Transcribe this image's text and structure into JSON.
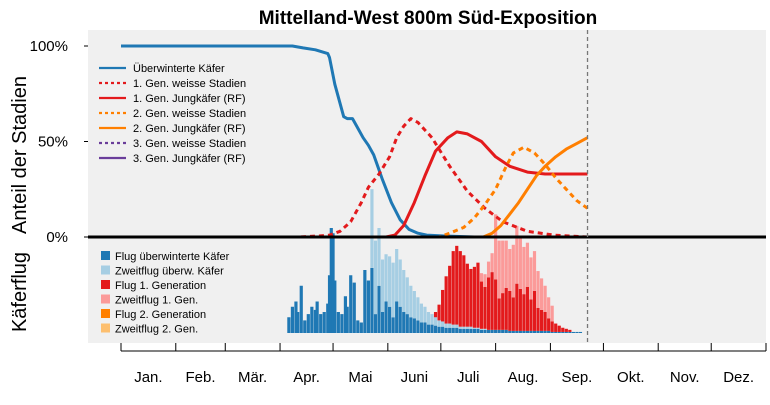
{
  "chart_data": {
    "type": "line",
    "title": "Mittelland-West 800m Süd-Exposition",
    "ylabel_top": "Anteil der Stadien",
    "ylabel_bottom": "Käferflug",
    "yticks": [
      "100%",
      "50%",
      "0%"
    ],
    "ylim_top": [
      0,
      100
    ],
    "xlim": [
      0,
      365
    ],
    "months": [
      "Jan.",
      "Feb.",
      "Mär.",
      "Apr.",
      "Mai",
      "Juni",
      "Juli",
      "Aug.",
      "Sep.",
      "Okt.",
      "Nov.",
      "Dez."
    ],
    "month_starts": [
      0,
      31,
      59,
      90,
      120,
      151,
      181,
      212,
      243,
      273,
      304,
      334,
      365
    ],
    "today_marker_day": 264,
    "colors": {
      "panel_bg": "#f0f0f0",
      "overwintered": "#1f78b4",
      "overwintered_light": "#a6cee3",
      "gen1": "#e31a1c",
      "gen1_light": "#fb9a99",
      "gen2": "#ff7f00",
      "gen2_light": "#fdbf6f",
      "gen3": "#6a3d9a"
    },
    "legend_top": [
      {
        "label": "Überwinterte Käfer",
        "color": "#1f78b4",
        "dash": "solid"
      },
      {
        "label": "1. Gen. weisse Stadien",
        "color": "#e31a1c",
        "dash": "dashed"
      },
      {
        "label": "1. Gen. Jungkäfer (RF)",
        "color": "#e31a1c",
        "dash": "solid"
      },
      {
        "label": "2. Gen. weisse Stadien",
        "color": "#ff7f00",
        "dash": "dashed"
      },
      {
        "label": "2. Gen. Jungkäfer (RF)",
        "color": "#ff7f00",
        "dash": "solid"
      },
      {
        "label": "3. Gen. weisse Stadien",
        "color": "#6a3d9a",
        "dash": "dashed"
      },
      {
        "label": "3. Gen. Jungkäfer (RF)",
        "color": "#6a3d9a",
        "dash": "solid"
      }
    ],
    "legend_bottom": [
      {
        "label": "Flug überwinterte Käfer",
        "color": "#1f78b4"
      },
      {
        "label": "Zweitflug überw. Käfer",
        "color": "#a6cee3"
      },
      {
        "label": "Flug 1. Generation",
        "color": "#e31a1c"
      },
      {
        "label": "Zweitflug 1. Gen.",
        "color": "#fb9a99"
      },
      {
        "label": "Flug 2. Generation",
        "color": "#ff7f00"
      },
      {
        "label": "Zweitflug 2. Gen.",
        "color": "#fdbf6f"
      }
    ],
    "series": [
      {
        "name": "Überwinterte Käfer",
        "x": [
          0,
          90,
          97,
          103,
          110,
          117,
          118,
          121,
          126,
          128,
          131,
          134,
          137,
          140,
          143,
          148,
          153,
          158,
          163,
          168,
          173,
          183,
          200,
          230,
          264
        ],
        "y": [
          100,
          100,
          100,
          99,
          98,
          96,
          94,
          80,
          63,
          62,
          62,
          57,
          52,
          48,
          43,
          30,
          18,
          9,
          4,
          2,
          1,
          0.5,
          0,
          0,
          0
        ]
      },
      {
        "name": "1. Gen. weisse Stadien",
        "x": [
          0,
          100,
          112,
          118,
          124,
          130,
          136,
          140,
          146,
          152,
          156,
          160,
          164,
          168,
          176,
          186,
          196,
          206,
          216,
          230,
          245,
          264
        ],
        "y": [
          0,
          0,
          0.5,
          1,
          3,
          8,
          18,
          26,
          33,
          42,
          52,
          58,
          62,
          60,
          52,
          37,
          24,
          15,
          8,
          3,
          1,
          0
        ]
      },
      {
        "name": "1. Gen. Jungkäfer (RF)",
        "x": [
          0,
          150,
          155,
          160,
          166,
          172,
          178,
          185,
          190,
          196,
          204,
          212,
          220,
          230,
          240,
          250,
          264
        ],
        "y": [
          0,
          0,
          1,
          6,
          18,
          32,
          45,
          52,
          55,
          54,
          50,
          42,
          37,
          34,
          33,
          33,
          33
        ]
      },
      {
        "name": "2. Gen. weisse Stadien",
        "x": [
          0,
          175,
          180,
          186,
          194,
          200,
          206,
          212,
          218,
          222,
          228,
          234,
          240,
          246,
          252,
          258,
          264
        ],
        "y": [
          0,
          0,
          0,
          2,
          5,
          10,
          17,
          25,
          37,
          44,
          47,
          44,
          38,
          31,
          25,
          19,
          15
        ]
      },
      {
        "name": "2. Gen. Jungkäfer (RF)",
        "x": [
          0,
          205,
          210,
          215,
          220,
          225,
          230,
          235,
          240,
          246,
          252,
          258,
          264
        ],
        "y": [
          0,
          0,
          2,
          6,
          12,
          18,
          25,
          32,
          37,
          42,
          46,
          49,
          52
        ]
      },
      {
        "name": "3. Gen. weisse Stadien",
        "x": [
          0,
          264
        ],
        "y": [
          0,
          0
        ]
      },
      {
        "name": "3. Gen. Jungkäfer (RF)",
        "x": [
          0,
          264
        ],
        "y": [
          0,
          0
        ]
      }
    ],
    "flight_bars": [
      {
        "name": "Flug überwinterte Käfer",
        "color": "#1f78b4",
        "days": [
          95,
          97,
          99,
          100,
          102,
          104,
          106,
          108,
          110,
          111,
          113,
          115,
          117,
          118,
          119,
          120,
          121,
          123,
          125,
          127,
          128,
          130,
          132,
          134,
          136,
          138,
          140,
          142,
          144,
          146,
          148,
          150,
          152,
          154,
          156,
          158,
          160,
          162,
          164,
          166,
          168,
          170,
          172,
          174,
          176,
          178,
          180,
          182,
          184,
          186,
          188,
          190,
          192,
          194,
          196,
          198,
          200,
          202,
          204,
          206,
          208,
          210,
          212,
          214,
          216,
          218,
          220,
          222,
          224,
          226,
          228,
          230,
          232,
          234,
          236,
          238,
          240,
          242,
          244,
          246,
          248,
          250,
          252,
          254,
          256,
          258,
          260
        ],
        "values": [
          15,
          25,
          30,
          20,
          45,
          12,
          18,
          25,
          22,
          30,
          18,
          20,
          28,
          55,
          100,
          95,
          50,
          20,
          18,
          35,
          25,
          55,
          48,
          12,
          10,
          60,
          50,
          62,
          18,
          45,
          20,
          30,
          25,
          15,
          30,
          25,
          20,
          18,
          15,
          14,
          12,
          10,
          10,
          8,
          8,
          7,
          6,
          6,
          5,
          5,
          5,
          5,
          4,
          4,
          4,
          4,
          4,
          4,
          3,
          3,
          3,
          3,
          3,
          3,
          3,
          3,
          2,
          2,
          2,
          2,
          2,
          2,
          2,
          2,
          2,
          2,
          2,
          2,
          1,
          1,
          1,
          1,
          1,
          1,
          1,
          1,
          1
        ]
      },
      {
        "name": "Zweitflug überw. Käfer",
        "color": "#a6cee3",
        "days": [
          142,
          144,
          146,
          148,
          150,
          152,
          154,
          156,
          158,
          160,
          162,
          164,
          166,
          168,
          170,
          172,
          174,
          176,
          178,
          180,
          182,
          184,
          186,
          188,
          190,
          192,
          194,
          196,
          198,
          200,
          202,
          204,
          206
        ],
        "values": [
          75,
          70,
          55,
          50,
          45,
          48,
          52,
          50,
          45,
          40,
          35,
          30,
          26,
          22,
          18,
          15,
          12,
          10,
          8,
          6,
          5,
          4,
          4,
          3,
          3,
          2,
          2,
          2,
          2,
          1,
          1,
          1,
          1
        ]
      },
      {
        "name": "Flug 1. Generation",
        "color": "#e31a1c",
        "days": [
          178,
          180,
          182,
          184,
          186,
          188,
          190,
          192,
          194,
          196,
          198,
          200,
          202,
          204,
          206,
          208,
          210,
          212,
          214,
          216,
          218,
          220,
          222,
          224,
          226,
          228,
          230,
          232,
          234,
          236,
          238,
          240,
          242,
          244,
          246,
          248,
          250,
          252,
          254
        ],
        "values": [
          5,
          15,
          30,
          45,
          55,
          70,
          75,
          72,
          68,
          60,
          55,
          58,
          62,
          45,
          40,
          50,
          55,
          48,
          30,
          35,
          40,
          38,
          32,
          45,
          40,
          35,
          42,
          30,
          38,
          22,
          20,
          18,
          12,
          10,
          8,
          6,
          4,
          3,
          2
        ]
      },
      {
        "name": "Zweitflug 1. Gen.",
        "color": "#fb9a99",
        "days": [
          204,
          206,
          208,
          210,
          212,
          214,
          216,
          218,
          220,
          222,
          224,
          226,
          228,
          230,
          232,
          234,
          236,
          238,
          240,
          242,
          244
        ],
        "values": [
          8,
          12,
          15,
          18,
          62,
          55,
          50,
          45,
          40,
          50,
          55,
          48,
          45,
          42,
          40,
          38,
          35,
          30,
          25,
          20,
          15
        ]
      },
      {
        "name": "Flug 2. Generation",
        "color": "#ff7f00",
        "days": [],
        "values": []
      },
      {
        "name": "Zweitflug 2. Gen.",
        "color": "#fdbf6f",
        "days": [],
        "values": []
      }
    ]
  }
}
